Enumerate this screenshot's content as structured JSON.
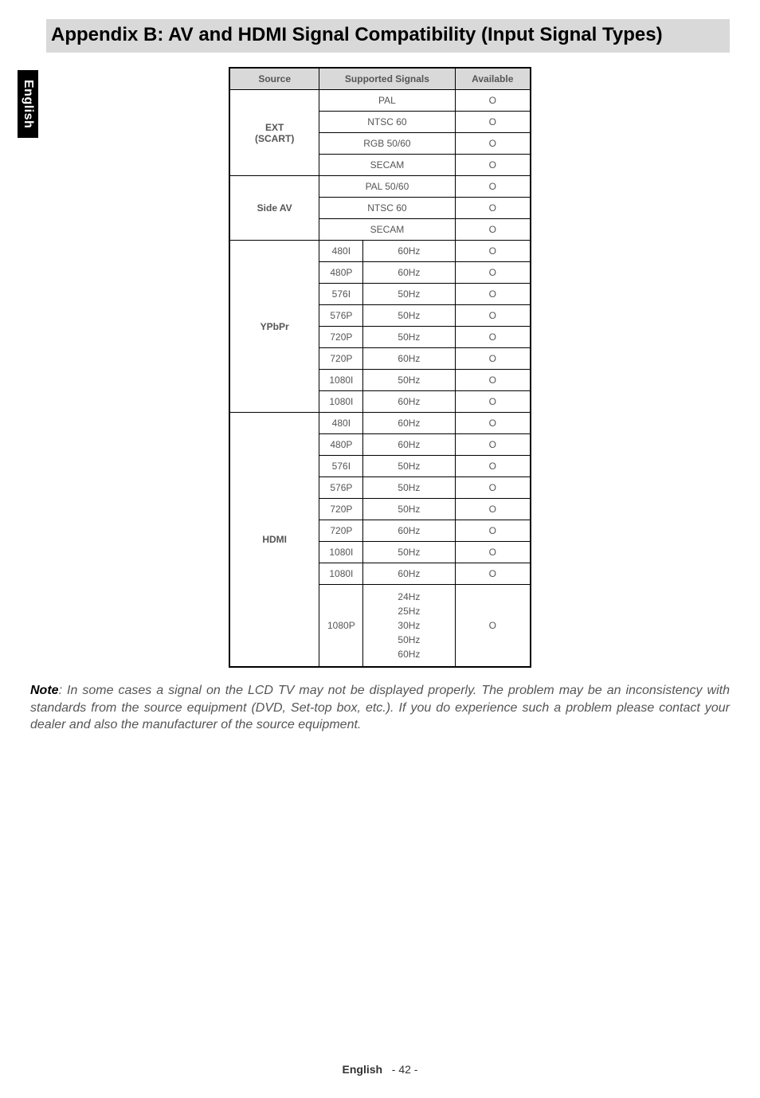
{
  "sideTab": "English",
  "title": "Appendix B: AV and HDMI Signal Compatibility (Input Signal Types)",
  "headers": {
    "source": "Source",
    "supported": "Supported Signals",
    "available": "Available"
  },
  "groups": [
    {
      "source": "EXT\n(SCART)",
      "rows": [
        {
          "signal": [
            "PAL"
          ],
          "avail": "O"
        },
        {
          "signal": [
            "NTSC 60"
          ],
          "avail": "O"
        },
        {
          "signal": [
            "RGB 50/60"
          ],
          "avail": "O"
        },
        {
          "signal": [
            "SECAM"
          ],
          "avail": "O"
        }
      ]
    },
    {
      "source": "Side AV",
      "rows": [
        {
          "signal": [
            "PAL 50/60"
          ],
          "avail": "O"
        },
        {
          "signal": [
            "NTSC 60"
          ],
          "avail": "O"
        },
        {
          "signal": [
            "SECAM"
          ],
          "avail": "O"
        }
      ]
    },
    {
      "source": "YPbPr",
      "rows": [
        {
          "signal": [
            "480I",
            "60Hz"
          ],
          "avail": "O"
        },
        {
          "signal": [
            "480P",
            "60Hz"
          ],
          "avail": "O"
        },
        {
          "signal": [
            "576I",
            "50Hz"
          ],
          "avail": "O"
        },
        {
          "signal": [
            "576P",
            "50Hz"
          ],
          "avail": "O"
        },
        {
          "signal": [
            "720P",
            "50Hz"
          ],
          "avail": "O"
        },
        {
          "signal": [
            "720P",
            "60Hz"
          ],
          "avail": "O"
        },
        {
          "signal": [
            "1080I",
            "50Hz"
          ],
          "avail": "O"
        },
        {
          "signal": [
            "1080I",
            "60Hz"
          ],
          "avail": "O"
        }
      ]
    },
    {
      "source": "HDMI",
      "rows": [
        {
          "signal": [
            "480I",
            "60Hz"
          ],
          "avail": "O"
        },
        {
          "signal": [
            "480P",
            "60Hz"
          ],
          "avail": "O"
        },
        {
          "signal": [
            "576I",
            "50Hz"
          ],
          "avail": "O"
        },
        {
          "signal": [
            "576P",
            "50Hz"
          ],
          "avail": "O"
        },
        {
          "signal": [
            "720P",
            "50Hz"
          ],
          "avail": "O"
        },
        {
          "signal": [
            "720P",
            "60Hz"
          ],
          "avail": "O"
        },
        {
          "signal": [
            "1080I",
            "50Hz"
          ],
          "avail": "O"
        },
        {
          "signal": [
            "1080I",
            "60Hz"
          ],
          "avail": "O"
        },
        {
          "signal": [
            "1080P",
            "24Hz\n25Hz\n30Hz\n50Hz\n60Hz"
          ],
          "avail": "O"
        }
      ]
    }
  ],
  "note": {
    "label": "Note",
    "body": ": In some cases a signal on the LCD TV may not be displayed properly. The problem may be an inconsistency with standards from the source equipment (DVD, Set-top box, etc.). If you do experience such a problem please contact your dealer and also the manufacturer of the source equipment."
  },
  "footer": {
    "lang": "English",
    "page": "- 42 -"
  },
  "colors": {
    "headerBg": "#d9d9d9",
    "border": "#000000",
    "bodyText": "#555555"
  }
}
